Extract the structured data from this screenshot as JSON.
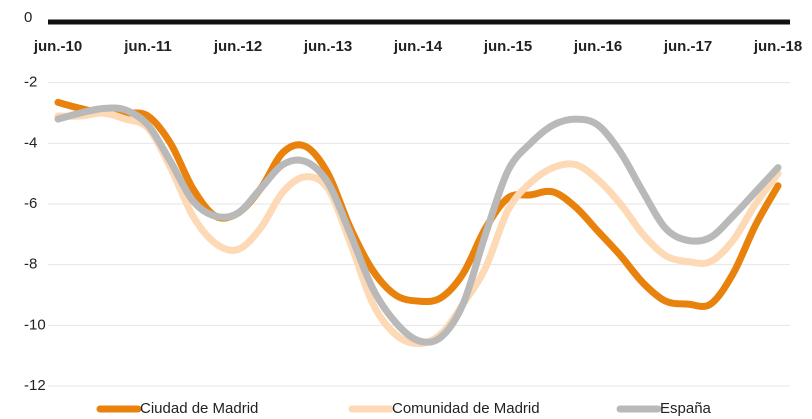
{
  "chart_data": {
    "type": "line",
    "categories": [
      "jun.-10",
      null,
      null,
      null,
      "jun.-11",
      null,
      null,
      null,
      "jun.-12",
      null,
      null,
      null,
      "jun.-13",
      null,
      null,
      null,
      "jun.-14",
      null,
      null,
      null,
      "jun.-15",
      null,
      null,
      null,
      "jun.-16",
      null,
      null,
      null,
      "jun.-17",
      null,
      null,
      null,
      "jun.-18"
    ],
    "series": [
      {
        "name": "Ciudad de Madrid",
        "color": "#e8820c",
        "values": [
          -2.65,
          -2.85,
          -3.0,
          -3.0,
          -3.1,
          -4.0,
          -5.5,
          -6.4,
          -6.3,
          -5.5,
          -4.3,
          -4.1,
          -5.0,
          -6.8,
          -8.2,
          -9.0,
          -9.2,
          -9.1,
          -8.3,
          -6.8,
          -5.8,
          -5.7,
          -5.6,
          -6.1,
          -6.9,
          -7.7,
          -8.6,
          -9.2,
          -9.3,
          -9.3,
          -8.3,
          -6.7,
          -5.4
        ]
      },
      {
        "name": "Comunidad de Madrid",
        "color": "#fdd9b5",
        "values": [
          -3.1,
          -3.1,
          -3.0,
          -3.2,
          -3.5,
          -4.8,
          -6.4,
          -7.3,
          -7.5,
          -6.8,
          -5.6,
          -5.1,
          -5.5,
          -7.3,
          -9.3,
          -10.3,
          -10.6,
          -10.3,
          -9.3,
          -8.1,
          -6.2,
          -5.3,
          -4.8,
          -4.7,
          -5.2,
          -6.0,
          -7.0,
          -7.7,
          -7.9,
          -7.9,
          -7.2,
          -6.0,
          -5.0
        ]
      },
      {
        "name": "España",
        "color": "#b9b9b9",
        "values": [
          -3.2,
          -3.0,
          -2.85,
          -2.9,
          -3.4,
          -4.6,
          -5.9,
          -6.4,
          -6.3,
          -5.5,
          -4.7,
          -4.6,
          -5.3,
          -7.0,
          -8.8,
          -9.9,
          -10.5,
          -10.4,
          -9.3,
          -7.0,
          -4.9,
          -4.0,
          -3.4,
          -3.2,
          -3.4,
          -4.3,
          -5.6,
          -6.8,
          -7.2,
          -7.1,
          -6.4,
          -5.6,
          -4.8
        ]
      }
    ],
    "ylim": [
      -12,
      0
    ],
    "yticks": [
      0,
      -2,
      -4,
      -6,
      -8,
      -10,
      -12
    ],
    "grid": true,
    "legend": "bottom"
  }
}
